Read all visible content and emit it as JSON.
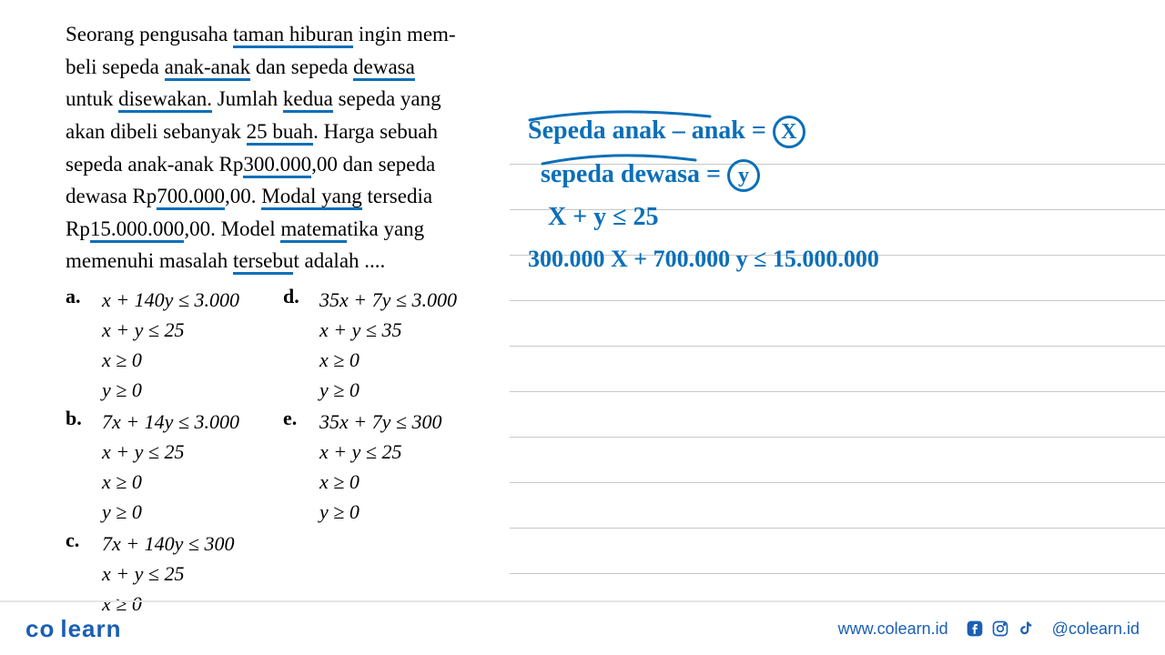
{
  "colors": {
    "ink_blue": "#0b6fb8",
    "text": "#000000",
    "rule": "#c8c8c8",
    "brand": "#1a5fb4",
    "footer_border": "#e5e5e5",
    "bg": "#ffffff"
  },
  "question": {
    "text_segments": [
      {
        "t": "Seorang pengusaha ",
        "u": false
      },
      {
        "t": "taman hiburan",
        "u": true
      },
      {
        "t": " ingin mem-",
        "u": false
      }
    ],
    "line2": [
      {
        "t": "beli sepeda ",
        "u": false
      },
      {
        "t": "anak-anak",
        "u": true
      },
      {
        "t": " dan sepeda ",
        "u": false
      },
      {
        "t": "dewasa",
        "u": true
      }
    ],
    "line3": [
      {
        "t": "untuk ",
        "u": false
      },
      {
        "t": "disewakan.",
        "u": true
      },
      {
        "t": "  Jumlah ",
        "u": false
      },
      {
        "t": "kedua",
        "u": true
      },
      {
        "t": " sepeda yang",
        "u": false
      }
    ],
    "line4": [
      {
        "t": "akan dibeli sebanyak ",
        "u": false
      },
      {
        "t": "25 buah",
        "u": true
      },
      {
        "t": ". Harga sebuah",
        "u": false
      }
    ],
    "line5": [
      {
        "t": "sepeda anak-anak Rp",
        "u": false
      },
      {
        "t": "300.000",
        "u": true
      },
      {
        "t": ",00 dan sepeda",
        "u": false
      }
    ],
    "line6": [
      {
        "t": "dewasa Rp",
        "u": false
      },
      {
        "t": "700.000",
        "u": true
      },
      {
        "t": ",00. ",
        "u": false
      },
      {
        "t": "Modal yang",
        "u": true
      },
      {
        "t": " tersedia",
        "u": false
      }
    ],
    "line7": [
      {
        "t": "Rp",
        "u": false
      },
      {
        "t": "15.000.000",
        "u": true
      },
      {
        "t": ",00. Model ",
        "u": false
      },
      {
        "t": "matema",
        "u": true
      },
      {
        "t": "tika yang",
        "u": false
      }
    ],
    "line8": [
      {
        "t": "memenuhi masalah ",
        "u": false
      },
      {
        "t": "tersebu",
        "u": true
      },
      {
        "t": "t adalah ....",
        "u": false
      }
    ]
  },
  "options": {
    "a": [
      "x + 140y ≤ 3.000",
      "x + y ≤ 25",
      "x ≥ 0",
      "y ≥ 0"
    ],
    "b": [
      "7x + 14y ≤ 3.000",
      "x + y ≤ 25",
      "x ≥ 0",
      "y ≥ 0"
    ],
    "c": [
      "7x + 140y ≤ 300",
      "x + y ≤ 25",
      "x ≥ 0"
    ],
    "d": [
      "35x + 7y ≤ 3.000",
      "x + y ≤ 35",
      "x ≥ 0",
      "y ≥ 0"
    ],
    "e": [
      "35x + 7y ≤ 300",
      "x + y ≤ 25",
      "x ≥ 0",
      "y ≥ 0"
    ]
  },
  "handwriting": {
    "line1_pre": "Sepeda  anak – anak  =",
    "line1_var": "X",
    "line2_pre": "sepeda  dewasa  =",
    "line2_var": "y",
    "line3": "X + y  ≤ 25",
    "line4": "300.000 X  +  700.000 y   ≤  15.000.000"
  },
  "ruled_lines_y": [
    180,
    230,
    280,
    330,
    380,
    430,
    480,
    530,
    580,
    630
  ],
  "footer": {
    "logo": "co learn",
    "url": "www.colearn.id",
    "handle": "@colearn.id"
  }
}
